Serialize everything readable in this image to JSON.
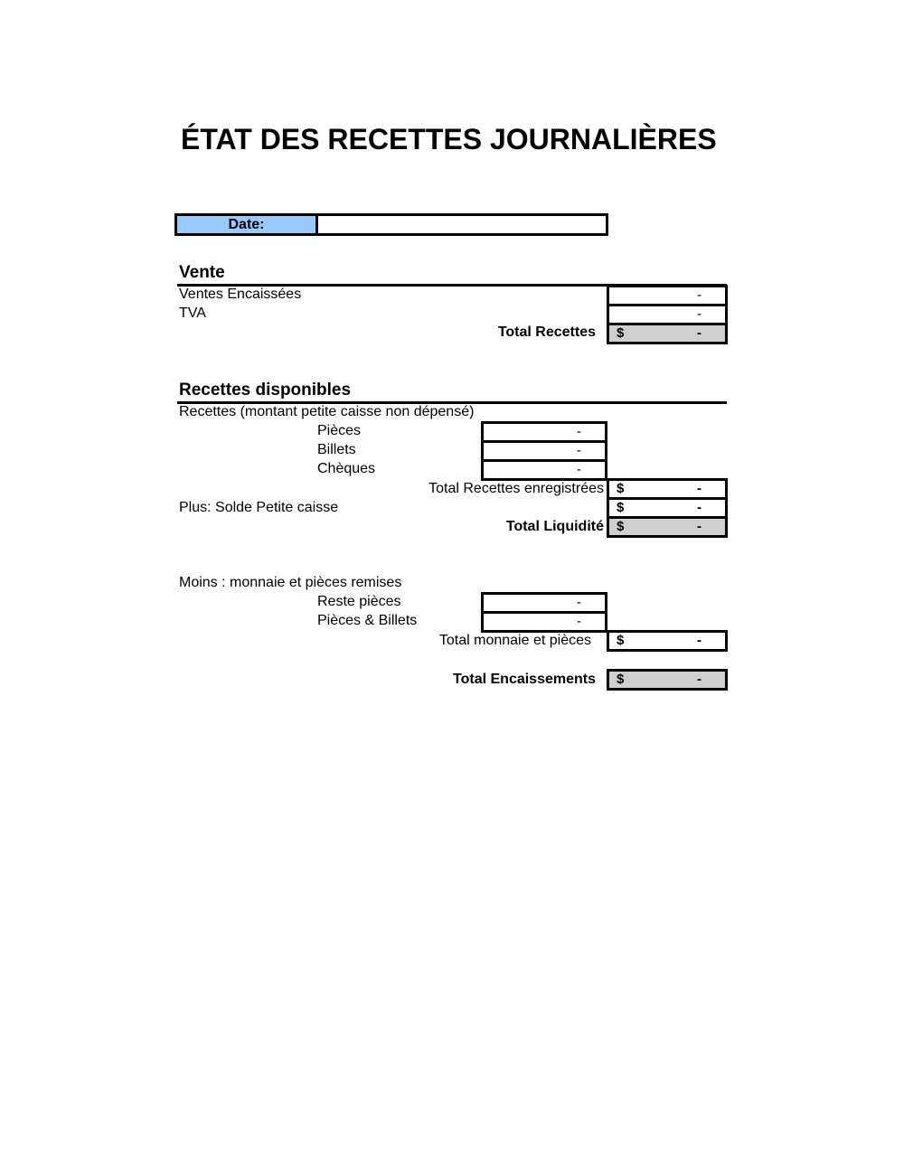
{
  "title": "ÉTAT DES RECETTES JOURNALIÈRES",
  "date": {
    "label": "Date:",
    "value": ""
  },
  "vente": {
    "heading": "Vente",
    "ventes_encaissees": {
      "label": "Ventes Encaissées",
      "value": "-"
    },
    "tva": {
      "label": "TVA",
      "value": "-"
    },
    "total_recettes": {
      "label": "Total Recettes",
      "currency": "$",
      "value": "-"
    }
  },
  "recettes": {
    "heading": "Recettes disponibles",
    "subheading": "Recettes (montant petite caisse non dépensé)",
    "pieces": {
      "label": "Pièces",
      "value": "-"
    },
    "billets": {
      "label": "Billets",
      "value": "-"
    },
    "cheques": {
      "label": "Chèques",
      "value": "-"
    },
    "total_enregistrees": {
      "label": "Total Recettes enregistrées",
      "currency": "$",
      "value": "-"
    },
    "solde_petite_caisse": {
      "label": "Plus: Solde Petite caisse",
      "currency": "$",
      "value": "-"
    },
    "total_liquidite": {
      "label": "Total Liquidité",
      "currency": "$",
      "value": "-"
    }
  },
  "moins": {
    "heading": "Moins : monnaie et pièces remises",
    "reste_pieces": {
      "label": "Reste pièces",
      "value": "-"
    },
    "pieces_billets": {
      "label": "Pièces & Billets",
      "value": "-"
    },
    "total_monnaie": {
      "label": "Total monnaie et pièces",
      "currency": "$",
      "value": "-"
    }
  },
  "total_encaissements": {
    "label": "Total Encaissements",
    "currency": "$",
    "value": "-"
  },
  "colors": {
    "date_label_bg": "#99c9ff",
    "total_bg": "#cfcfcf"
  }
}
